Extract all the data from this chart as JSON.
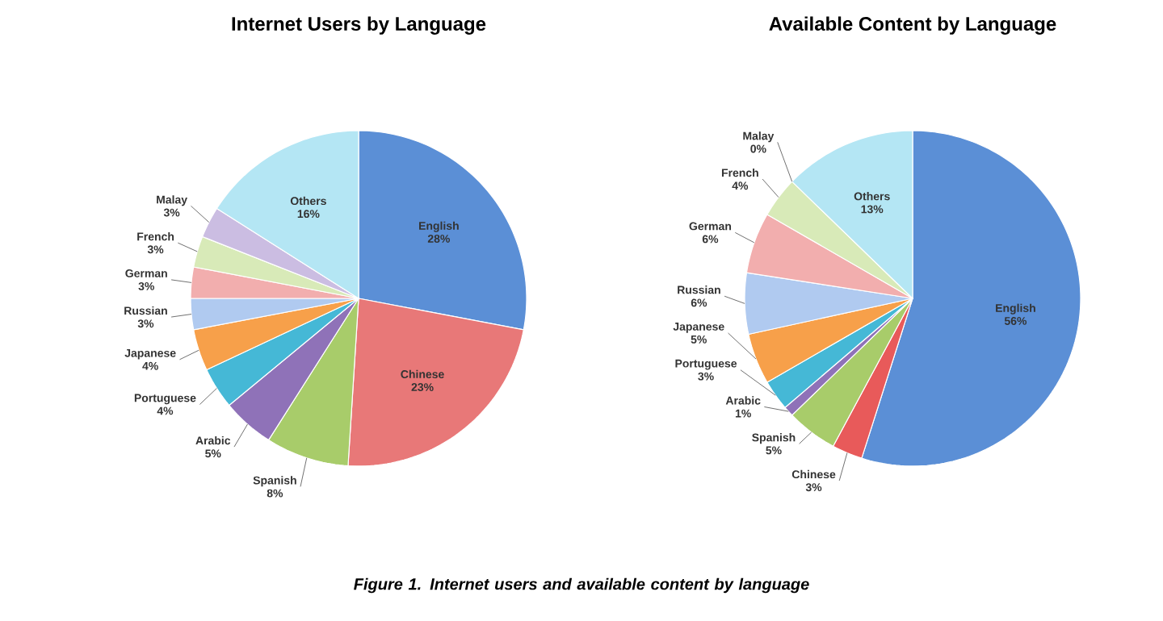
{
  "chart_data": [
    {
      "type": "pie",
      "title": "Internet Users by Language",
      "categories": [
        "English",
        "Chinese",
        "Spanish",
        "Arabic",
        "Portuguese",
        "Japanese",
        "Russian",
        "German",
        "French",
        "Malay",
        "Others"
      ],
      "values": [
        28,
        23,
        8,
        5,
        4,
        4,
        3,
        3,
        3,
        3,
        16
      ],
      "value_labels": [
        "28%",
        "23%",
        "8%",
        "5%",
        "4%",
        "4%",
        "3%",
        "3%",
        "3%",
        "3%",
        "16%"
      ],
      "colors": [
        "#5b8fd6",
        "#e87878",
        "#a8cc6a",
        "#8f72b8",
        "#45b8d6",
        "#f7a04a",
        "#b0caf0",
        "#f2aeae",
        "#d8eab8",
        "#cbbde2",
        "#b4e6f4"
      ],
      "annotations": [
        "Figure 1. Internet users and available content by language"
      ]
    },
    {
      "type": "pie",
      "title": "Available Content by Language",
      "categories": [
        "English",
        "Chinese",
        "Spanish",
        "Arabic",
        "Portuguese",
        "Japanese",
        "Russian",
        "German",
        "French",
        "Malay",
        "Others"
      ],
      "values": [
        56,
        3,
        5,
        1,
        3,
        5,
        6,
        6,
        4,
        0,
        13
      ],
      "value_labels": [
        "56%",
        "3%",
        "5%",
        "1%",
        "3%",
        "5%",
        "6%",
        "6%",
        "4%",
        "0%",
        "13%"
      ],
      "colors": [
        "#5b8fd6",
        "#e85a5a",
        "#a8cc6a",
        "#8f72b8",
        "#45b8d6",
        "#f7a04a",
        "#b0caf0",
        "#f2aeae",
        "#d8eab8",
        "#cbbde2",
        "#b4e6f4"
      ]
    }
  ]
}
